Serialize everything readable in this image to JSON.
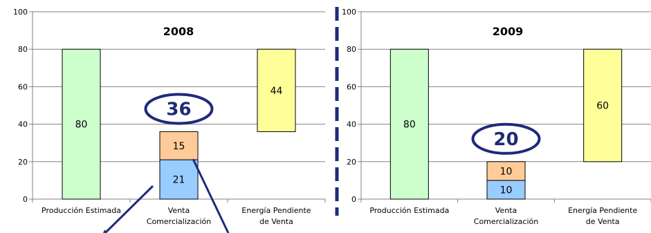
{
  "chart_data": [
    {
      "type": "bar",
      "title": "2008",
      "ylim": [
        0,
        100
      ],
      "yticks": [
        0,
        20,
        40,
        60,
        80,
        100
      ],
      "grid": true,
      "categories": [
        [
          "Producción Estimada"
        ],
        [
          "Venta",
          "Comercialización"
        ],
        [
          "Energía Pendiente",
          "de Venta"
        ]
      ],
      "bars": [
        {
          "category": 0,
          "segments": [
            {
              "from": 0,
              "to": 80,
              "label": "80",
              "color": "#ccffcc"
            }
          ]
        },
        {
          "category": 1,
          "segments": [
            {
              "from": 0,
              "to": 21,
              "label": "21",
              "color": "#99ccff"
            },
            {
              "from": 21,
              "to": 36,
              "label": "15",
              "color": "#ffcc99"
            }
          ]
        },
        {
          "category": 2,
          "segments": [
            {
              "from": 36,
              "to": 80,
              "label": "44",
              "color": "#ffff99"
            }
          ]
        }
      ],
      "callout": {
        "text": "36",
        "category": 1,
        "value": 36,
        "color": "#1f2a7a"
      }
    },
    {
      "type": "bar",
      "title": "2009",
      "ylim": [
        0,
        100
      ],
      "yticks": [
        0,
        20,
        40,
        60,
        80,
        100
      ],
      "grid": true,
      "categories": [
        [
          "Producción Estimada"
        ],
        [
          "Venta",
          "Comercialización"
        ],
        [
          "Energía Pendiente",
          "de Venta"
        ]
      ],
      "bars": [
        {
          "category": 0,
          "segments": [
            {
              "from": 0,
              "to": 80,
              "label": "80",
              "color": "#ccffcc"
            }
          ]
        },
        {
          "category": 1,
          "segments": [
            {
              "from": 0,
              "to": 10,
              "label": "10",
              "color": "#99ccff"
            },
            {
              "from": 10,
              "to": 20,
              "label": "10",
              "color": "#ffcc99"
            }
          ]
        },
        {
          "category": 2,
          "segments": [
            {
              "from": 20,
              "to": 80,
              "label": "60",
              "color": "#ffff99"
            }
          ]
        }
      ],
      "callout": {
        "text": "20",
        "category": 1,
        "value": 20,
        "color": "#1f2a7a"
      }
    }
  ],
  "colors": {
    "accent": "#1f2a7a",
    "grid": "#808080",
    "axis": "#808080"
  }
}
